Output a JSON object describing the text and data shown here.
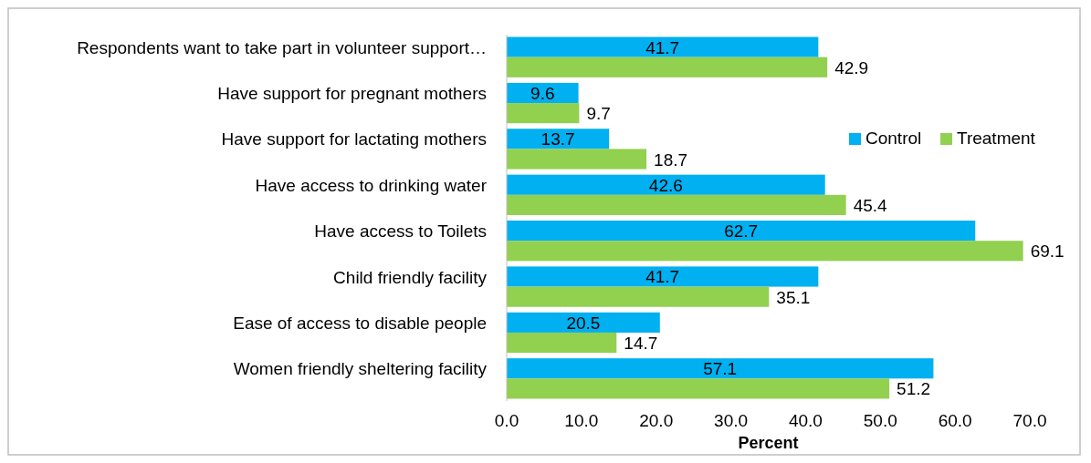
{
  "chart_data": {
    "type": "bar",
    "orientation": "horizontal",
    "xlabel": "Percent",
    "categories": [
      "Respondents want to take part in  volunteer support…",
      "Have support for pregnant mothers",
      "Have support for lactating mothers",
      "Have access to drinking water",
      "Have access to Toilets",
      "Child friendly facility",
      "Ease of access to disable people",
      "Women friendly sheltering facility"
    ],
    "series": [
      {
        "name": "Control",
        "color": "#00b0f0",
        "values": [
          41.7,
          9.6,
          13.7,
          42.6,
          62.7,
          41.7,
          20.5,
          57.1
        ]
      },
      {
        "name": "Treatment",
        "color": "#92d050",
        "values": [
          42.9,
          9.7,
          18.7,
          45.4,
          69.1,
          35.1,
          14.7,
          51.2
        ]
      }
    ],
    "xlim": [
      0,
      70
    ],
    "xticks": [
      {
        "value": 0,
        "label": "0.0"
      },
      {
        "value": 10,
        "label": "10.0"
      },
      {
        "value": 20,
        "label": "20.0"
      },
      {
        "value": 30,
        "label": "30.0"
      },
      {
        "value": 40,
        "label": "40.0"
      },
      {
        "value": 50,
        "label": "50.0"
      },
      {
        "value": 60,
        "label": "60.0"
      },
      {
        "value": 70,
        "label": "70.0"
      }
    ],
    "data_labels": true,
    "legend": "right",
    "grid": false
  }
}
